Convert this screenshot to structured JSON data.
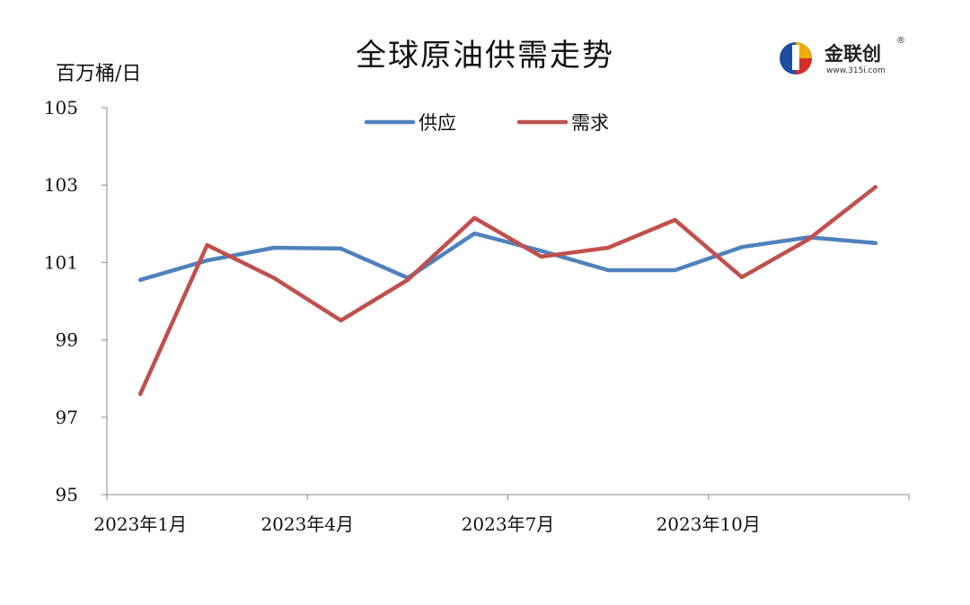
{
  "chart_data": {
    "type": "line",
    "title": "全球原油供需走势",
    "ylabel": "百万桶/日",
    "ylim": [
      95,
      105
    ],
    "y_ticks": [
      95,
      97,
      99,
      101,
      103,
      105
    ],
    "x_tick_labels": [
      "2023年1月",
      "2023年4月",
      "2023年7月",
      "2023年10月"
    ],
    "x_tick_positions": [
      0,
      3,
      6,
      9
    ],
    "categories": [
      "2023-01",
      "2023-02",
      "2023-03",
      "2023-04",
      "2023-05",
      "2023-06",
      "2023-07",
      "2023-08",
      "2023-09",
      "2023-10",
      "2023-11",
      "2023-12"
    ],
    "series": [
      {
        "name": "供应",
        "color": "#4f81bd",
        "values": [
          100.55,
          101.05,
          101.38,
          101.36,
          100.6,
          101.75,
          101.3,
          100.8,
          100.8,
          101.4,
          101.65,
          101.5
        ]
      },
      {
        "name": "需求",
        "color": "#c0504d",
        "values": [
          97.6,
          101.45,
          100.6,
          99.5,
          100.55,
          102.15,
          101.15,
          101.38,
          102.1,
          100.62,
          101.6,
          102.95
        ]
      }
    ],
    "legend_position": "top-center",
    "grid": false
  },
  "logo": {
    "name": "金联创",
    "registered": "®",
    "url": "www.315i.com"
  }
}
